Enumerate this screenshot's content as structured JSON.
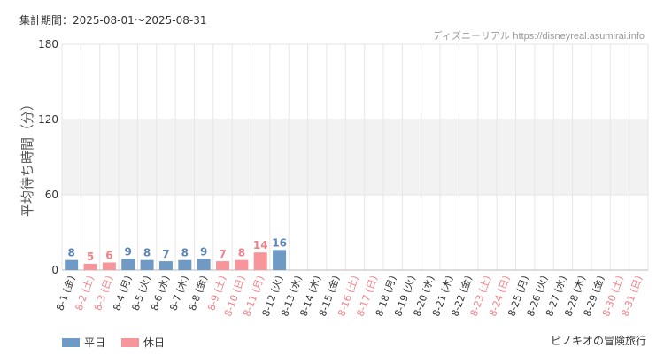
{
  "header": {
    "period_label": "集計期間：2025-08-01～2025-08-31",
    "credit_site": "ディズニーリアル",
    "credit_url": "https://disneyreal.asumirai.info"
  },
  "footer": {
    "attraction": "ピノキオの冒険旅行"
  },
  "legend": {
    "weekday": "平日",
    "holiday": "休日"
  },
  "colors": {
    "weekday": "#6f9ac6",
    "holiday": "#f7959a",
    "weekday_label": "#5b85b8",
    "holiday_label": "#f08088",
    "band": "#f2f2f2",
    "grid": "#e6e6e6"
  },
  "chart_data": {
    "type": "bar",
    "ylabel": "平均待ち時間（分）",
    "ylim": [
      0,
      180
    ],
    "yticks": [
      0,
      60,
      120,
      180
    ],
    "categories": [
      "8-1 (金)",
      "8-2 (土)",
      "8-3 (日)",
      "8-4 (月)",
      "8-5 (火)",
      "8-6 (水)",
      "8-7 (木)",
      "8-8 (金)",
      "8-9 (土)",
      "8-10 (日)",
      "8-11 (月)",
      "8-12 (火)",
      "8-13 (水)",
      "8-14 (木)",
      "8-15 (金)",
      "8-16 (土)",
      "8-17 (日)",
      "8-18 (月)",
      "8-19 (火)",
      "8-20 (水)",
      "8-21 (木)",
      "8-22 (金)",
      "8-23 (土)",
      "8-24 (日)",
      "8-25 (月)",
      "8-26 (火)",
      "8-27 (水)",
      "8-28 (木)",
      "8-29 (金)",
      "8-30 (土)",
      "8-31 (日)"
    ],
    "holiday": [
      false,
      true,
      true,
      false,
      false,
      false,
      false,
      false,
      true,
      true,
      true,
      false,
      false,
      false,
      false,
      true,
      true,
      false,
      false,
      false,
      false,
      false,
      true,
      true,
      false,
      false,
      false,
      false,
      false,
      true,
      true
    ],
    "values": [
      8,
      5,
      6,
      9,
      8,
      7,
      8,
      9,
      7,
      8,
      14,
      16,
      null,
      null,
      null,
      null,
      null,
      null,
      null,
      null,
      null,
      null,
      null,
      null,
      null,
      null,
      null,
      null,
      null,
      null,
      null
    ]
  }
}
